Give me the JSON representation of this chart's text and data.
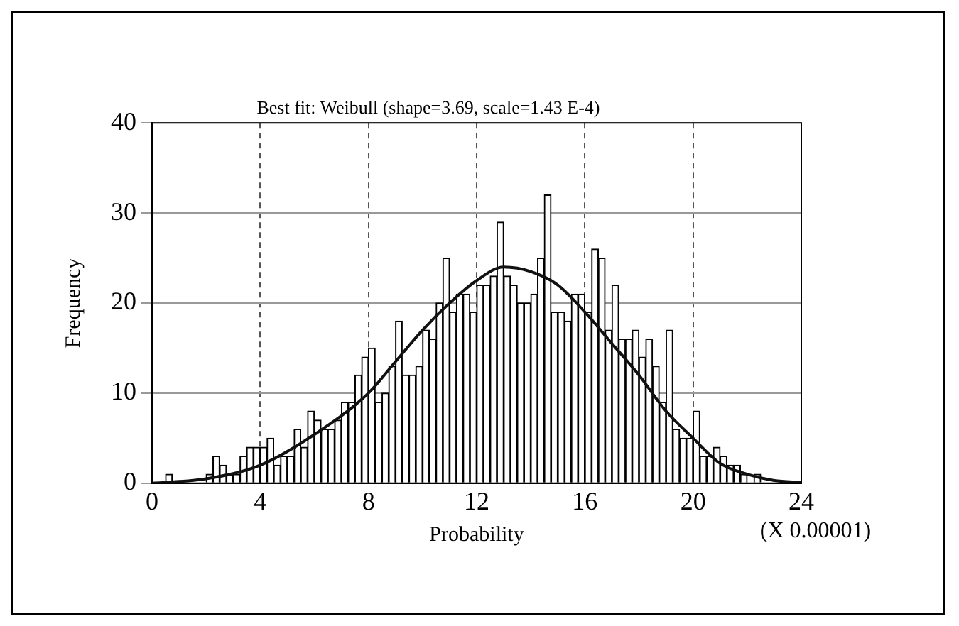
{
  "chart_data": {
    "type": "histogram",
    "title": "Best fit: Weibull (shape=3.69, scale=1.43 E-4)",
    "xlabel": "Probability",
    "ylabel": "Frequency",
    "annotations": [
      "(X 0.00001)"
    ],
    "bins": [
      0,
      0.25,
      0.5,
      0.75,
      1,
      1.25,
      1.5,
      1.75,
      2,
      2.25,
      2.5,
      2.75,
      3,
      3.25,
      3.5,
      3.75,
      4,
      4.25,
      4.5,
      4.75,
      5,
      5.25,
      5.5,
      5.75,
      6,
      6.25,
      6.5,
      6.75,
      7,
      7.25,
      7.5,
      7.75,
      8,
      8.25,
      8.5,
      8.75,
      9,
      9.25,
      9.5,
      9.75,
      10,
      10.25,
      10.5,
      10.75,
      11,
      11.25,
      11.5,
      11.75,
      12,
      12.25,
      12.5,
      12.75,
      13,
      13.25,
      13.5,
      13.75,
      14,
      14.25,
      14.5,
      14.75,
      15,
      15.25,
      15.5,
      15.75,
      16,
      16.25,
      16.5,
      16.75,
      17,
      17.25,
      17.5,
      17.75,
      18,
      18.25,
      18.5,
      18.75,
      19,
      19.25,
      19.5,
      19.75,
      20,
      20.25,
      20.5,
      20.75,
      21,
      21.25,
      21.5,
      21.75,
      22,
      22.25,
      22.5,
      22.75,
      23,
      23.25,
      23.5,
      23.75,
      24
    ],
    "values": [
      0,
      0,
      1,
      0,
      0,
      0,
      0,
      0,
      1,
      3,
      2,
      1,
      1,
      3,
      4,
      4,
      4,
      5,
      2,
      3,
      3,
      6,
      4,
      8,
      7,
      6,
      6,
      7,
      9,
      9,
      12,
      14,
      15,
      9,
      10,
      13,
      18,
      12,
      12,
      13,
      17,
      16,
      20,
      25,
      19,
      21,
      21,
      19,
      22,
      22,
      23,
      29,
      23,
      22,
      20,
      20,
      21,
      25,
      32,
      19,
      19,
      18,
      21,
      21,
      19,
      26,
      25,
      17,
      22,
      16,
      16,
      17,
      14,
      16,
      13,
      9,
      17,
      6,
      5,
      5,
      8,
      3,
      3,
      4,
      3,
      2,
      2,
      1,
      0,
      1,
      0,
      0,
      0,
      0,
      0,
      0
    ],
    "color": "#ffffff",
    "series": [
      {
        "type": "line",
        "color": "#111111",
        "x": [
          0,
          2,
          4,
          6,
          8,
          9,
          10,
          11,
          12,
          13,
          14,
          15,
          16,
          17,
          18,
          19,
          20,
          21,
          22,
          23,
          24
        ],
        "values": [
          0,
          0.5,
          2,
          5.4,
          10,
          13.5,
          17,
          20,
          22.5,
          24,
          23.5,
          22,
          19,
          15.5,
          12,
          8,
          5,
          2.2,
          1,
          0.3,
          0.1
        ]
      }
    ],
    "xlim": [
      0,
      24
    ],
    "xticks": [
      0,
      4,
      8,
      12,
      16,
      20,
      24
    ],
    "ylim": [
      0,
      40
    ],
    "yticks": [
      0,
      10,
      20,
      30,
      40
    ],
    "grid": true,
    "legend": false
  }
}
